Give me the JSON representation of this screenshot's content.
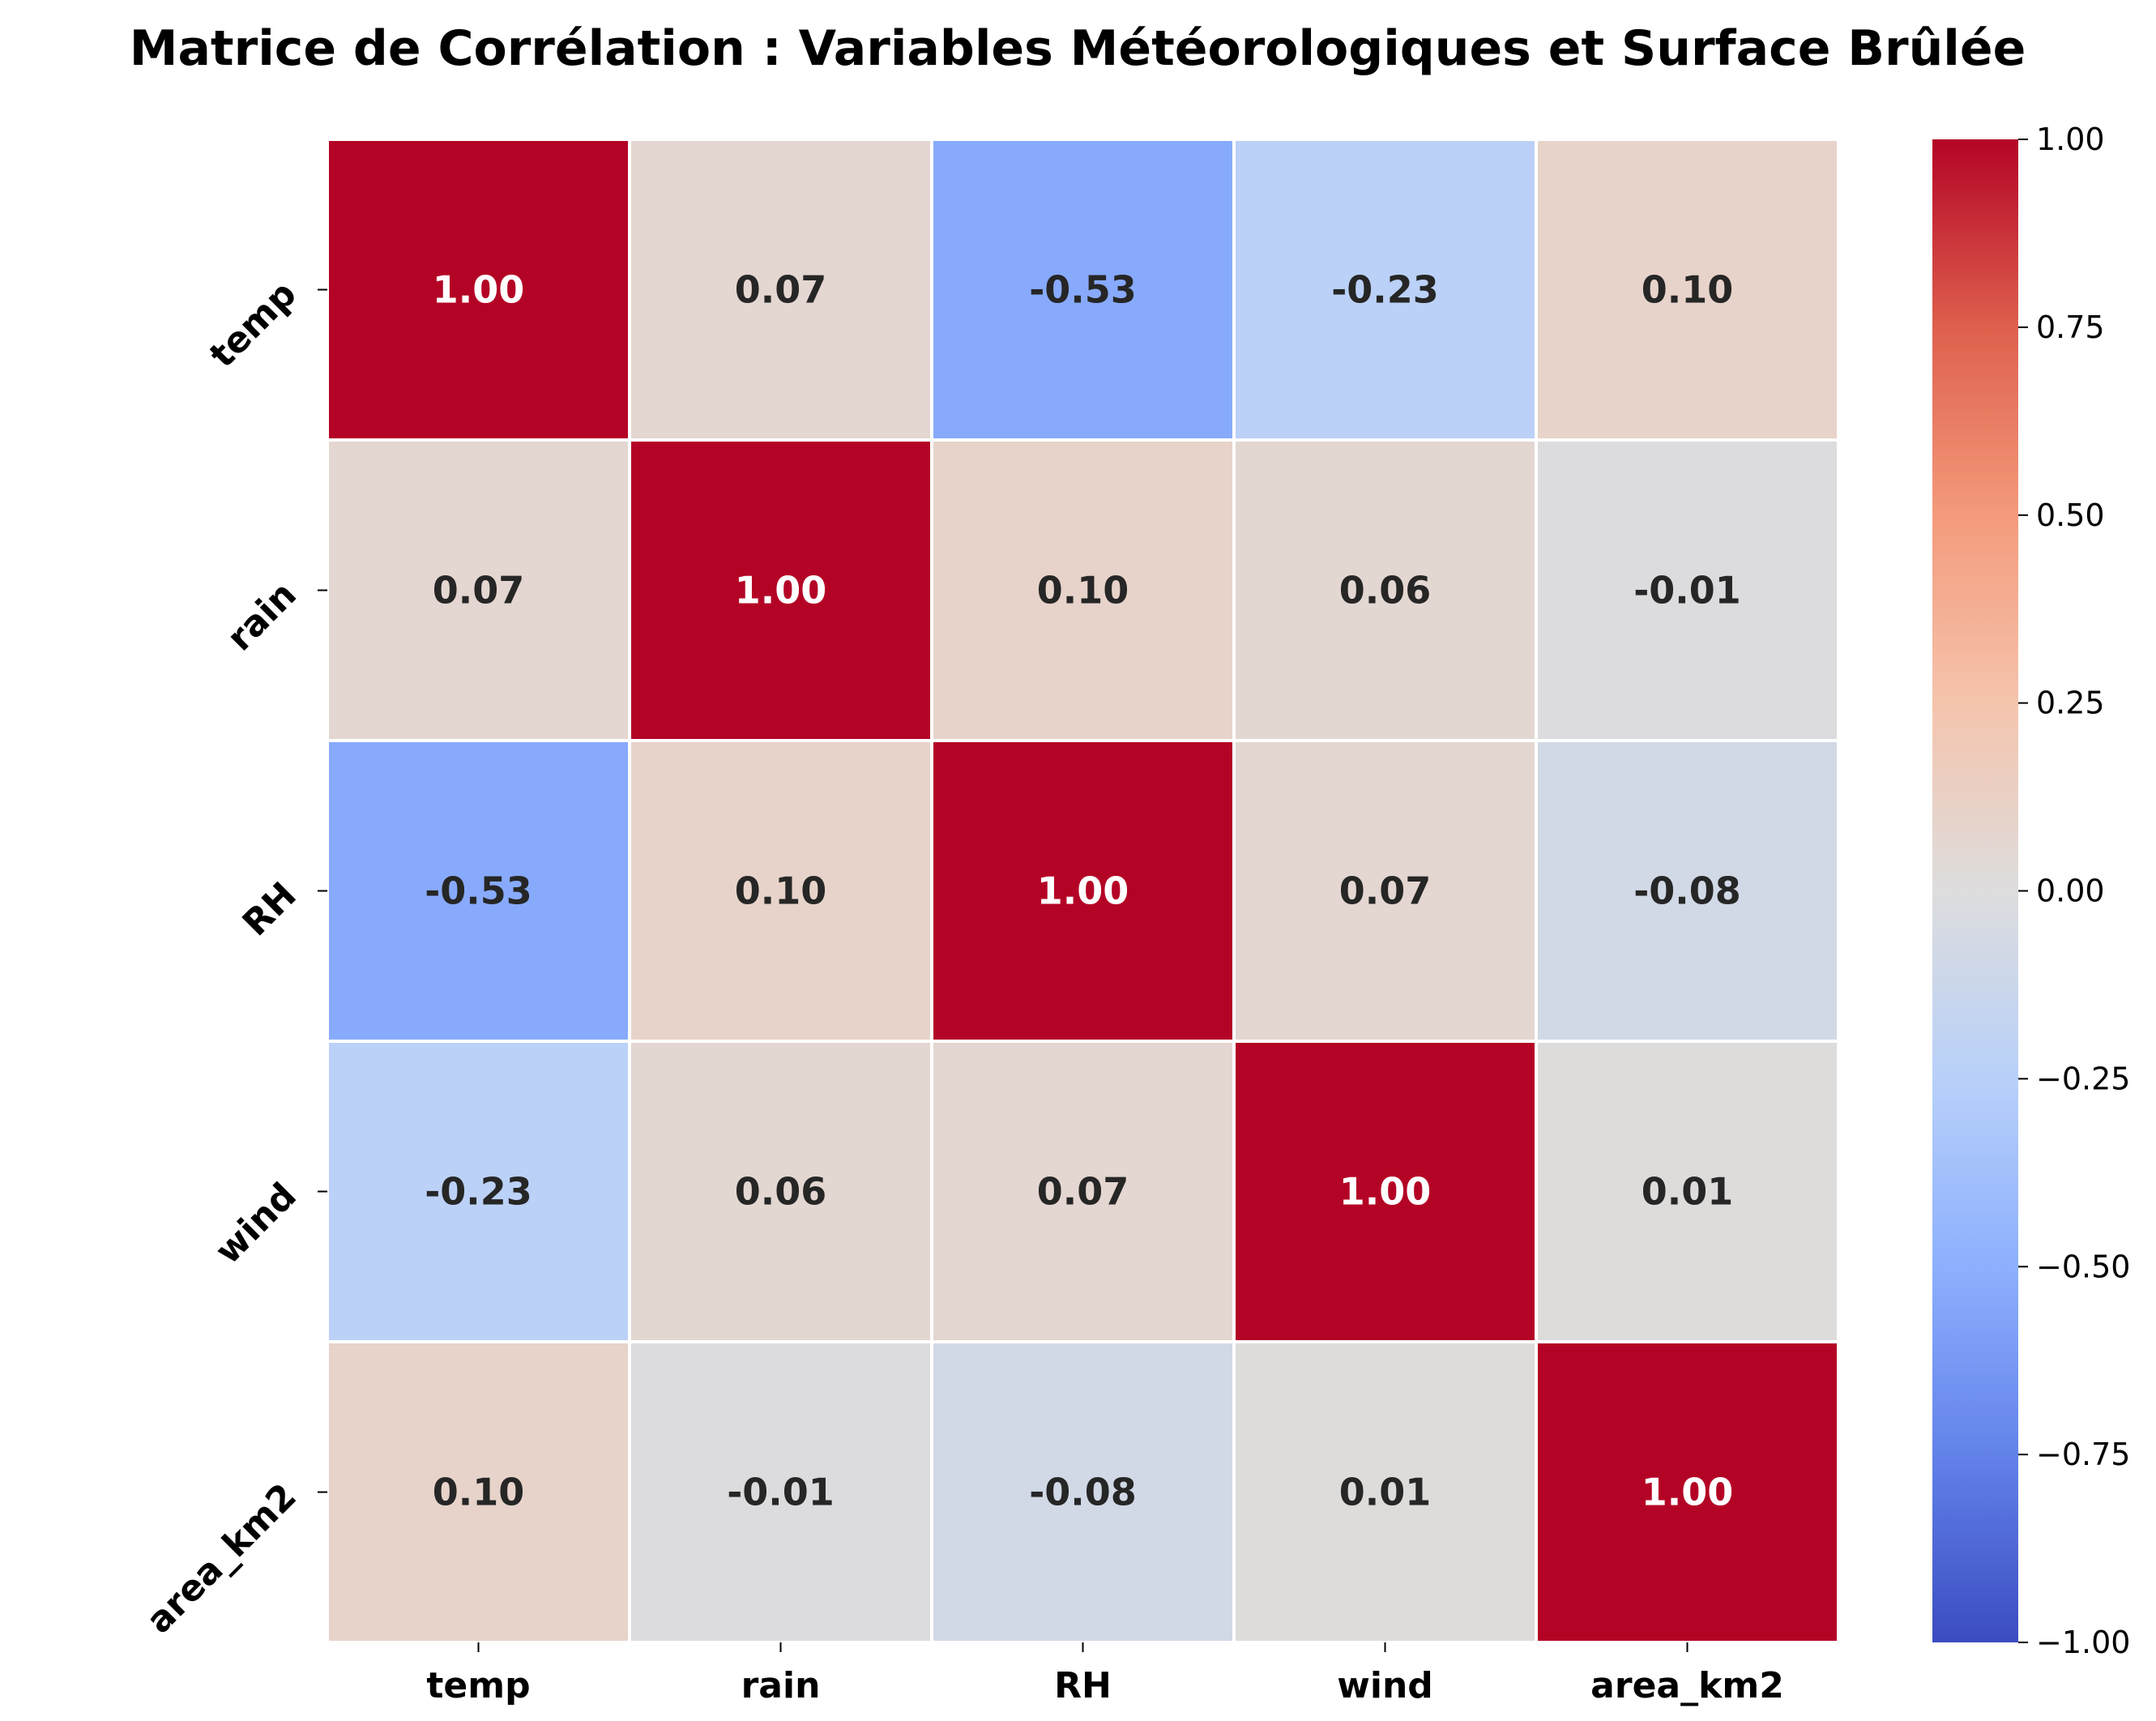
{
  "chart_data": {
    "type": "heatmap",
    "title": "Matrice de Corrélation : Variables Météorologiques et Surface Brûlée",
    "x_labels": [
      "temp",
      "rain",
      "RH",
      "wind",
      "area_km2"
    ],
    "y_labels": [
      "temp",
      "rain",
      "RH",
      "wind",
      "area_km2"
    ],
    "matrix": [
      [
        1.0,
        0.07,
        -0.53,
        -0.23,
        0.1
      ],
      [
        0.07,
        1.0,
        0.1,
        0.06,
        -0.01
      ],
      [
        -0.53,
        0.1,
        1.0,
        0.07,
        -0.08
      ],
      [
        -0.23,
        0.06,
        0.07,
        1.0,
        0.01
      ],
      [
        0.1,
        -0.01,
        -0.08,
        0.01,
        1.0
      ]
    ],
    "annotations": [
      [
        "1.00",
        "0.07",
        "-0.53",
        "-0.23",
        "0.10"
      ],
      [
        "0.07",
        "1.00",
        "0.10",
        "0.06",
        "-0.01"
      ],
      [
        "-0.53",
        "0.10",
        "1.00",
        "0.07",
        "-0.08"
      ],
      [
        "-0.23",
        "0.06",
        "0.07",
        "1.00",
        "0.01"
      ],
      [
        "0.10",
        "-0.01",
        "-0.08",
        "0.01",
        "1.00"
      ]
    ],
    "colormap": "coolwarm",
    "vmin": -1.0,
    "vmax": 1.0,
    "colorbar_ticks": [
      1.0,
      0.75,
      0.5,
      0.25,
      0.0,
      -0.25,
      -0.5,
      -0.75,
      -1.0
    ],
    "colorbar_tick_labels": [
      "1.00",
      "0.75",
      "0.50",
      "0.25",
      "0.00",
      "−0.25",
      "−0.50",
      "−0.75",
      "−1.00"
    ],
    "colors": {
      "low": "#3b4cc0",
      "mid": "#dddddd",
      "high": "#b40426",
      "grid_line": "#ffffff",
      "annot_dark": "#262626",
      "annot_light": "#ffffff"
    }
  }
}
